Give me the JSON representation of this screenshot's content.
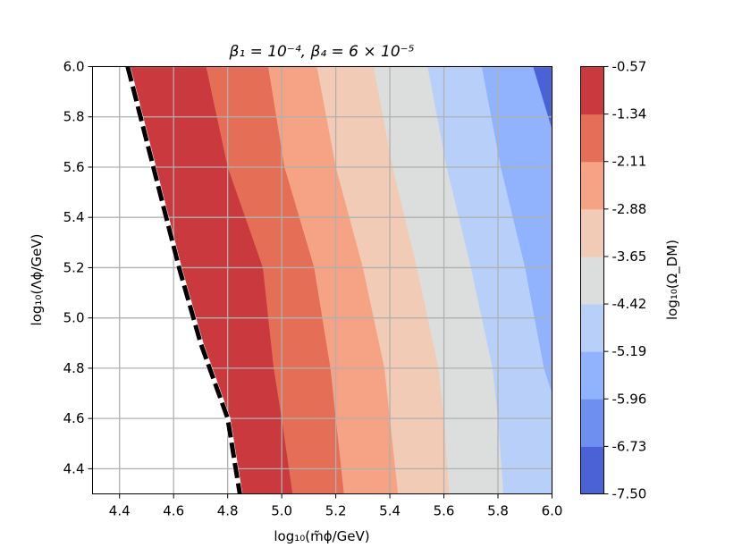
{
  "chart_data": {
    "type": "contour",
    "title": "β₁ = 10⁻⁴, β₄ = 6 × 10⁻⁵",
    "xlabel": "log₁₀(m̃ϕ/GeV)",
    "ylabel": "log₁₀(Λϕ/GeV)",
    "colorbar_label": "log₁₀(Ω_DM)",
    "xlim": [
      4.3,
      6.0
    ],
    "ylim": [
      4.3,
      6.0
    ],
    "x_ticks": [
      4.4,
      4.6,
      4.8,
      5.0,
      5.2,
      5.4,
      5.6,
      5.8,
      6.0
    ],
    "x_tick_labels": [
      "4.4",
      "4.6",
      "4.8",
      "5.0",
      "5.2",
      "5.4",
      "5.6",
      "5.8",
      "6.0"
    ],
    "y_ticks": [
      4.4,
      4.6,
      4.8,
      5.0,
      5.2,
      5.4,
      5.6,
      5.8,
      6.0
    ],
    "y_tick_labels": [
      "4.4",
      "4.6",
      "4.8",
      "5.0",
      "5.2",
      "5.4",
      "5.6",
      "5.8",
      "6.0"
    ],
    "grid": true,
    "levels": [
      -7.5,
      -6.73,
      -5.96,
      -5.19,
      -4.42,
      -3.65,
      -2.88,
      -2.11,
      -1.34,
      -0.57
    ],
    "level_labels": [
      "-7.50",
      "-6.73",
      "-5.96",
      "-5.19",
      "-4.42",
      "-3.65",
      "-2.88",
      "-2.11",
      "-1.34",
      "-0.57"
    ],
    "band_colors": [
      "#4a62d6",
      "#6c8ff0",
      "#91b2fd",
      "#b8d0f9",
      "#dcdddd",
      "#f2cbb7",
      "#f6a385",
      "#e46e56",
      "#c9393d"
    ],
    "boundaries": [
      {
        "upper_level": -1.34,
        "points": [
          [
            4.72,
            6.0
          ],
          [
            4.8,
            5.6
          ],
          [
            4.93,
            5.2
          ],
          [
            4.97,
            4.8
          ],
          [
            5.0,
            4.6
          ],
          [
            5.04,
            4.3
          ]
        ]
      },
      {
        "upper_level": -2.11,
        "points": [
          [
            4.95,
            6.0
          ],
          [
            5.01,
            5.6
          ],
          [
            5.12,
            5.2
          ],
          [
            5.18,
            4.8
          ],
          [
            5.2,
            4.6
          ],
          [
            5.23,
            4.3
          ]
        ]
      },
      {
        "upper_level": -2.88,
        "points": [
          [
            5.13,
            6.0
          ],
          [
            5.2,
            5.6
          ],
          [
            5.3,
            5.2
          ],
          [
            5.38,
            4.8
          ],
          [
            5.4,
            4.6
          ],
          [
            5.43,
            4.3
          ]
        ]
      },
      {
        "upper_level": -3.65,
        "points": [
          [
            5.34,
            6.0
          ],
          [
            5.41,
            5.6
          ],
          [
            5.5,
            5.2
          ],
          [
            5.58,
            4.8
          ],
          [
            5.6,
            4.6
          ],
          [
            5.62,
            4.3
          ]
        ]
      },
      {
        "upper_level": -4.42,
        "points": [
          [
            5.54,
            6.0
          ],
          [
            5.61,
            5.6
          ],
          [
            5.7,
            5.2
          ],
          [
            5.78,
            4.8
          ],
          [
            5.8,
            4.6
          ],
          [
            5.82,
            4.3
          ]
        ]
      },
      {
        "upper_level": -5.19,
        "points": [
          [
            5.74,
            6.0
          ],
          [
            5.81,
            5.6
          ],
          [
            5.9,
            5.2
          ],
          [
            5.97,
            4.8
          ],
          [
            6.0,
            4.7
          ]
        ]
      },
      {
        "upper_level": -5.96,
        "points": [
          [
            5.93,
            6.0
          ],
          [
            6.0,
            5.75
          ]
        ]
      }
    ],
    "excluded_boundary": {
      "style": "dashed",
      "points": [
        [
          4.43,
          6.0
        ],
        [
          4.62,
          5.2
        ],
        [
          4.7,
          4.9
        ],
        [
          4.8,
          4.6
        ],
        [
          4.83,
          4.4
        ],
        [
          4.845,
          4.3
        ]
      ]
    }
  }
}
